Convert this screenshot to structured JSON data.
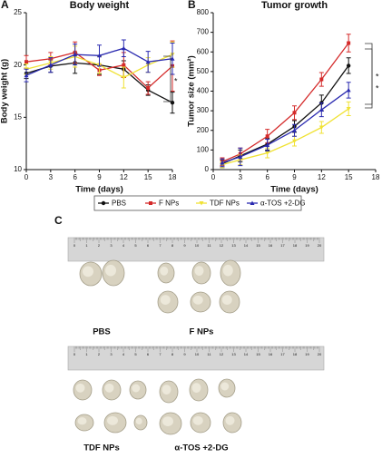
{
  "chart_data": [
    {
      "type": "line",
      "panel": "A",
      "title": "Body weight",
      "x_label": "Time (days)",
      "y_label": "Body weight (g)",
      "x": [
        0,
        3,
        6,
        9,
        12,
        15,
        18
      ],
      "xlim": [
        0,
        18
      ],
      "xticks": [
        0,
        3,
        6,
        9,
        12,
        15,
        18
      ],
      "ylim": [
        10,
        25
      ],
      "yticks": [
        10,
        15,
        20,
        25
      ],
      "series": [
        {
          "values": [
            19.2,
            19.9,
            20.2,
            20.0,
            19.6,
            17.6,
            16.4
          ],
          "errors": [
            0.5,
            0.6,
            1.0,
            0.9,
            0.8,
            0.5,
            1.0
          ]
        },
        {
          "values": [
            20.3,
            20.6,
            21.2,
            19.5,
            20.0,
            17.8,
            19.9
          ],
          "errors": [
            0.6,
            0.6,
            1.0,
            0.5,
            1.2,
            0.6,
            2.4
          ]
        },
        {
          "values": [
            19.6,
            20.2,
            20.8,
            20.0,
            18.8,
            20.0,
            21.0
          ],
          "errors": [
            0.5,
            0.6,
            1.0,
            0.8,
            1.0,
            0.7,
            1.2
          ]
        },
        {
          "values": [
            19.0,
            20.0,
            21.0,
            20.9,
            21.6,
            20.3,
            20.6
          ],
          "errors": [
            0.6,
            0.7,
            1.0,
            1.0,
            0.8,
            1.0,
            1.5
          ]
        }
      ],
      "annotations": [
        "*"
      ]
    },
    {
      "type": "line",
      "panel": "B",
      "title": "Tumor growth",
      "x_label": "Time (days)",
      "y_label": "Tumor size (mm²)",
      "x": [
        1,
        3,
        6,
        9,
        12,
        15
      ],
      "xlim": [
        0,
        18
      ],
      "xticks": [
        0,
        3,
        6,
        9,
        12,
        15,
        18
      ],
      "ylim": [
        0,
        800
      ],
      "yticks": [
        0,
        100,
        200,
        300,
        400,
        500,
        600,
        700,
        800
      ],
      "series": [
        {
          "values": [
            30,
            70,
            130,
            220,
            340,
            530
          ],
          "errors": [
            20,
            30,
            30,
            30,
            40,
            40
          ]
        },
        {
          "values": [
            40,
            80,
            170,
            290,
            460,
            645
          ],
          "errors": [
            20,
            30,
            35,
            35,
            35,
            45
          ]
        },
        {
          "values": [
            25,
            50,
            85,
            145,
            215,
            310
          ],
          "errors": [
            15,
            25,
            25,
            25,
            30,
            35
          ]
        },
        {
          "values": [
            35,
            65,
            125,
            200,
            305,
            405
          ],
          "errors": [
            20,
            45,
            30,
            30,
            35,
            40
          ]
        }
      ],
      "annotations": [
        "*",
        "*"
      ]
    }
  ],
  "legend": [
    {
      "name": "PBS",
      "color": "#111111"
    },
    {
      "name": "F NPs",
      "color": "#d42a2a"
    },
    {
      "name": "TDF NPs",
      "color": "#f0e234"
    },
    {
      "name": "α-TOS +2-DG",
      "color": "#2a2ab0"
    }
  ],
  "panel_c": {
    "label": "C",
    "ruler_labels": [
      0,
      1,
      2,
      3,
      4,
      5,
      6,
      7,
      8,
      9,
      10,
      11,
      12,
      13,
      14,
      15,
      16,
      17,
      18,
      19,
      20
    ],
    "groups": [
      "PBS",
      "F NPs",
      "TDF NPs",
      "α-TOS +2-DG"
    ]
  }
}
